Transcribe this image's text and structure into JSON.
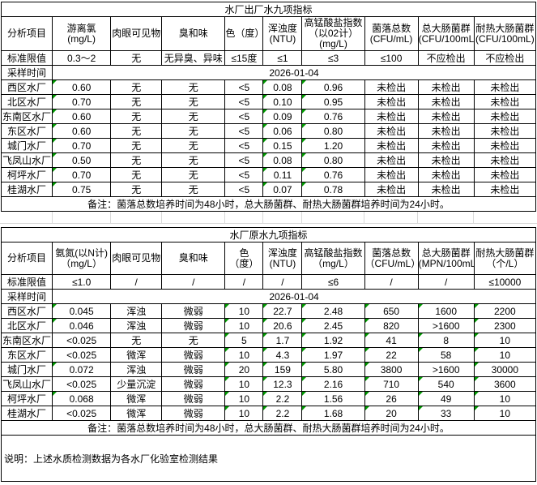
{
  "colors": {
    "border": "#000000",
    "flag_green": "#009900",
    "faint_grid": "#d9d9d9",
    "background": "#ffffff",
    "text": "#000000"
  },
  "footer_note": "说明：上述水质检测数据为各水厂化验室检测结果",
  "tables": [
    {
      "title": "水厂出厂水九项指标",
      "headers": [
        "分析项目",
        "游离氯\n(mg/L)",
        "肉眼可见物",
        "臭和味",
        "色（度）",
        "浑浊度\n(NTU)",
        "高锰酸盐指数\n（以02计）\n(mg/L)",
        "菌落总数\n(CFU/mL)",
        "总大肠菌群\n(CFU/100mL)",
        "耐热大肠菌群\n(CFU/100mL)"
      ],
      "limit_row": {
        "label": "标准限值",
        "values": [
          "0.3～2",
          "无",
          "无异臭、异味",
          "≤15度",
          "≤1",
          "≤3",
          "≤100",
          "不应检出",
          "不应检出"
        ]
      },
      "sampling_row": {
        "label": "采样时间",
        "date": "2026-01-04"
      },
      "rows": [
        {
          "name": "西区水厂",
          "values": [
            "0.60",
            "无",
            "无",
            "<5",
            "0.08",
            "0.96",
            "未检出",
            "未检出",
            "未检出"
          ],
          "flags": [
            0,
            4,
            5
          ]
        },
        {
          "name": "北区水厂",
          "values": [
            "0.70",
            "无",
            "无",
            "<5",
            "0.10",
            "0.95",
            "未检出",
            "未检出",
            "未检出"
          ],
          "flags": [
            0,
            4,
            5
          ]
        },
        {
          "name": "东南区水厂",
          "values": [
            "0.60",
            "无",
            "无",
            "<5",
            "0.09",
            "0.76",
            "未检出",
            "未检出",
            "未检出"
          ],
          "flags": [
            0,
            4,
            5
          ]
        },
        {
          "name": "东区水厂",
          "values": [
            "0.60",
            "无",
            "无",
            "<5",
            "0.06",
            "0.80",
            "未检出",
            "未检出",
            "未检出"
          ],
          "flags": [
            0,
            4,
            5
          ]
        },
        {
          "name": "城门水厂",
          "values": [
            "0.70",
            "无",
            "无",
            "<5",
            "0.15",
            "1.20",
            "未检出",
            "未检出",
            "未检出"
          ],
          "flags": [
            0,
            4,
            5
          ]
        },
        {
          "name": "飞凤山水厂",
          "values": [
            "0.50",
            "无",
            "无",
            "<5",
            "0.08",
            "0.80",
            "未检出",
            "未检出",
            "未检出"
          ],
          "flags": [
            0,
            4,
            5
          ]
        },
        {
          "name": "柯坪水厂",
          "values": [
            "0.70",
            "无",
            "无",
            "<5",
            "0.11",
            "0.76",
            "未检出",
            "未检出",
            "未检出"
          ],
          "flags": [
            0,
            4,
            5
          ]
        },
        {
          "name": "桂湖水厂",
          "values": [
            "0.75",
            "无",
            "无",
            "<5",
            "0.07",
            "0.78",
            "未检出",
            "未检出",
            "未检出"
          ],
          "flags": [
            0,
            4,
            5
          ]
        }
      ],
      "note": "备注：菌落总数培养时间为48小时，总大肠菌群、耐热大肠菌群培养时间为24小时。"
    },
    {
      "title": "水厂原水九项指标",
      "headers": [
        "分析项目",
        "氨氮(以N计)\n（mg/L）",
        "肉眼可见物",
        "臭和味",
        "色\n（度）",
        "浑浊度\n(NTU)",
        "高锰酸盐指数\n（mg/L）",
        "菌落总数\n（CFU/mL）",
        "总大肠菌群\n(MPN/100mL)",
        "耐热大肠菌群\n（个/L）"
      ],
      "limit_row": {
        "label": "标准限值",
        "values": [
          "≤1.0",
          "/",
          "/",
          "/",
          "/",
          "≤6",
          "/",
          "/",
          "≤10000"
        ]
      },
      "sampling_row": {
        "label": "采样时间",
        "date": "2026-01-04"
      },
      "rows": [
        {
          "name": "西区水厂",
          "values": [
            "0.045",
            "浑浊",
            "微弱",
            "10",
            "22.7",
            "2.48",
            "650",
            "1600",
            "2200"
          ],
          "flags": [
            0,
            3,
            4,
            5,
            6,
            7,
            8
          ]
        },
        {
          "name": "北区水厂",
          "values": [
            "0.046",
            "浑浊",
            "微弱",
            "10",
            "20.6",
            "2.45",
            "820",
            ">1600",
            "2300"
          ],
          "flags": [
            0,
            3,
            4,
            5,
            6,
            8
          ]
        },
        {
          "name": "东南区水厂",
          "values": [
            "<0.025",
            "无",
            "无",
            "5",
            "1.7",
            "1.92",
            "41",
            "8",
            "10"
          ],
          "flags": [
            3,
            4,
            5,
            6,
            7,
            8
          ]
        },
        {
          "name": "东区水厂",
          "values": [
            "<0.025",
            "微浑",
            "微弱",
            "10",
            "4.3",
            "1.97",
            "22",
            "58",
            "10"
          ],
          "flags": [
            3,
            4,
            5,
            6,
            7,
            8
          ]
        },
        {
          "name": "城门水厂",
          "values": [
            "0.072",
            "浑浊",
            "微弱",
            "20",
            "159",
            "5.80",
            "3800",
            ">1600",
            "30000"
          ],
          "flags": [
            0,
            3,
            4,
            5,
            6,
            8
          ]
        },
        {
          "name": "飞凤山水厂",
          "values": [
            "<0.025",
            "少量沉淀",
            "微弱",
            "10",
            "12.3",
            "2.16",
            "710",
            "540",
            "3600"
          ],
          "flags": [
            3,
            4,
            5,
            6,
            7,
            8
          ]
        },
        {
          "name": "柯坪水厂",
          "values": [
            "0.068",
            "微浑",
            "微弱",
            "10",
            "2.2",
            "1.56",
            "26",
            "49",
            "10"
          ],
          "flags": [
            0,
            3,
            4,
            5,
            6,
            7,
            8
          ]
        },
        {
          "name": "桂湖水厂",
          "values": [
            "<0.025",
            "微浑",
            "微弱",
            "10",
            "2.2",
            "1.68",
            "20",
            "33",
            "10"
          ],
          "flags": [
            3,
            4,
            5,
            6,
            7,
            8
          ]
        }
      ],
      "note": "备注：菌落总数培养时间为48小时，总大肠菌群、耐热大肠菌群培养时间为24小时。"
    }
  ]
}
